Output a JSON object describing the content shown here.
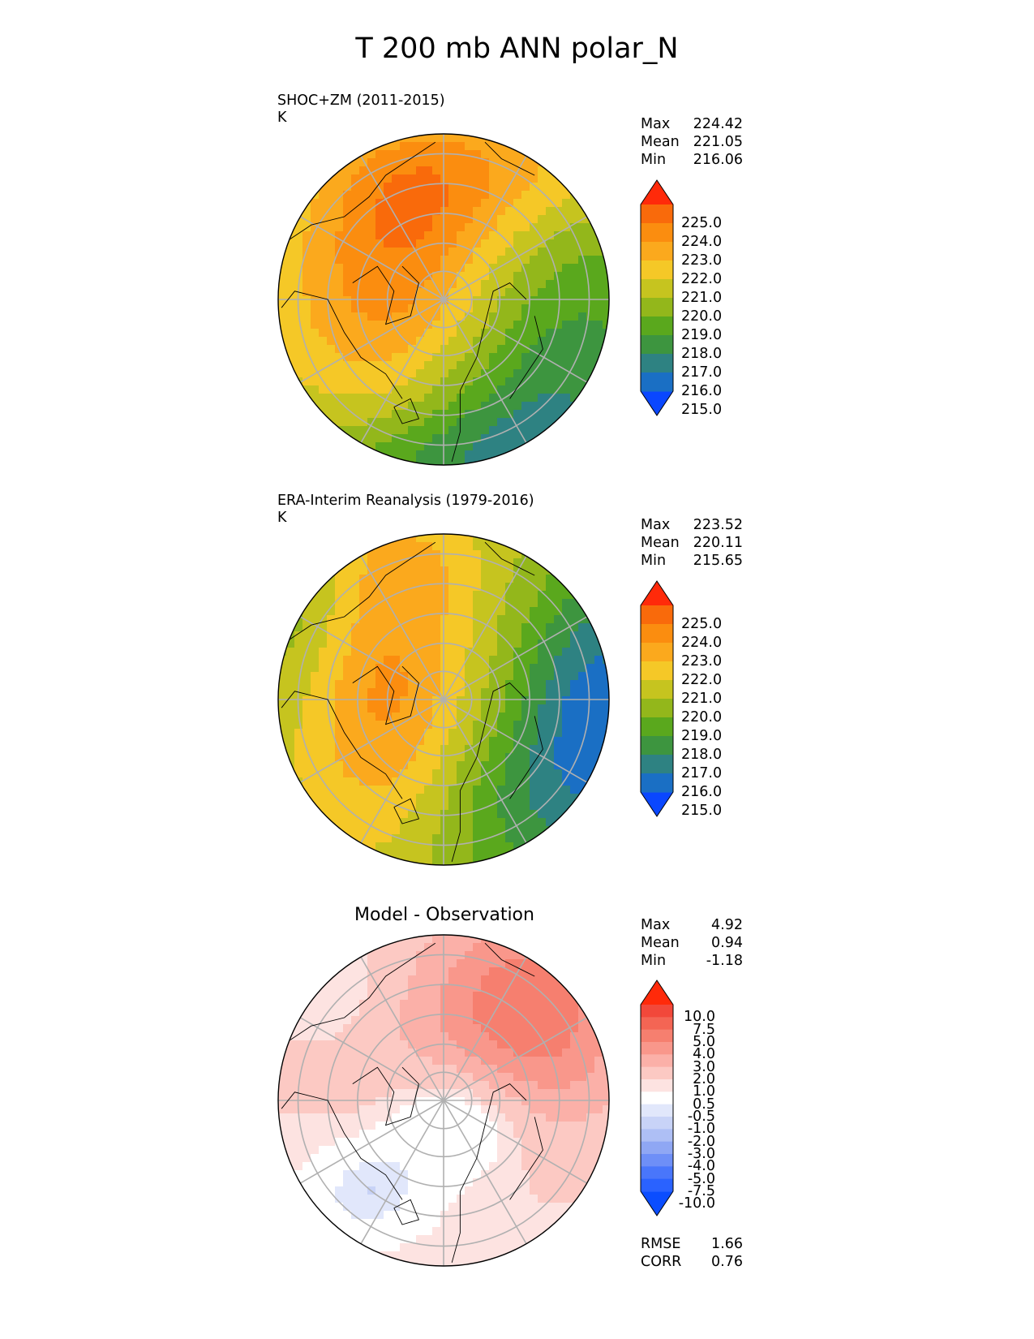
{
  "title": "T 200 mb ANN polar_N",
  "colors": {
    "map_gradient": [
      "#0a47ff",
      "#1a6fc4",
      "#2e8282",
      "#3d953f",
      "#5aa81d",
      "#93b71b",
      "#c6c41f",
      "#f5c827",
      "#fba91d",
      "#fb8d0f",
      "#f96a0b",
      "#ff2a0a"
    ],
    "diff_gradient": [
      "#0b4dff",
      "#2a62ff",
      "#4976fb",
      "#6e8ff7",
      "#8fa7f4",
      "#aebff5",
      "#c8d3f7",
      "#e1e7fb",
      "#ffffff",
      "#fde3e1",
      "#fcc9c3",
      "#fbb0a8",
      "#f9978b",
      "#f67f6f",
      "#f46554",
      "#f2483a",
      "#ff2a0a"
    ],
    "grid": "#b0b0b0",
    "coast": "#000000"
  },
  "chart_data": [
    {
      "type": "heatmap",
      "projection": "polar stereographic (north)",
      "title": "SHOC+ZM (2011-2015)",
      "units": "K",
      "stats": {
        "max": "224.42",
        "mean": "221.05",
        "min": "216.06"
      },
      "colorbar": {
        "levels": [
          "225.0",
          "224.0",
          "223.0",
          "222.0",
          "221.0",
          "220.0",
          "219.0",
          "218.0",
          "217.0",
          "216.0",
          "215.0"
        ],
        "extend": "both"
      },
      "range": [
        215,
        225
      ]
    },
    {
      "type": "heatmap",
      "projection": "polar stereographic (north)",
      "title": "ERA-Interim Reanalysis (1979-2016)",
      "units": "K",
      "stats": {
        "max": "223.52",
        "mean": "220.11",
        "min": "215.65"
      },
      "colorbar": {
        "levels": [
          "225.0",
          "224.0",
          "223.0",
          "222.0",
          "221.0",
          "220.0",
          "219.0",
          "218.0",
          "217.0",
          "216.0",
          "215.0"
        ],
        "extend": "both"
      },
      "range": [
        215,
        225
      ]
    },
    {
      "type": "heatmap",
      "projection": "polar stereographic (north)",
      "title": "Model - Observation",
      "stats": {
        "max": "4.92",
        "mean": "0.94",
        "min": "-1.18"
      },
      "colorbar": {
        "levels": [
          "10.0",
          "7.5",
          "5.0",
          "4.0",
          "3.0",
          "2.0",
          "1.0",
          "0.5",
          "-0.5",
          "-1.0",
          "-2.0",
          "-3.0",
          "-4.0",
          "-5.0",
          "-7.5",
          "-10.0"
        ],
        "extend": "both"
      },
      "metrics": {
        "rmse": "1.66",
        "corr": "0.76"
      },
      "range": [
        -10,
        10
      ]
    }
  ],
  "labels": {
    "max": "Max",
    "mean": "Mean",
    "min": "Min",
    "rmse": "RMSE",
    "corr": "CORR"
  }
}
